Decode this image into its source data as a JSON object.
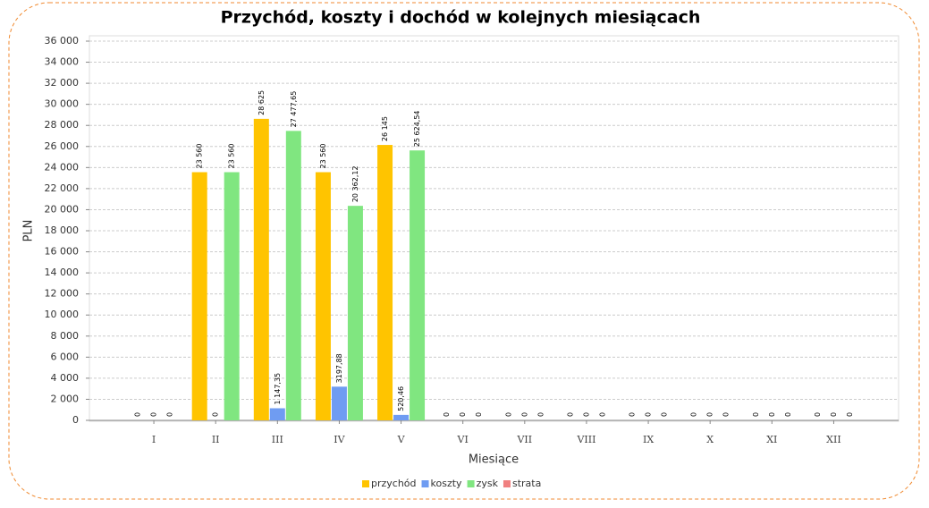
{
  "chart_data": {
    "type": "bar",
    "title": "Przychód, koszty i dochód w kolejnych miesiącach",
    "x_label": "Miesiące",
    "y_label": "PLN",
    "categories": [
      "I",
      "II",
      "III",
      "IV",
      "V",
      "VI",
      "VII",
      "VIII",
      "IX",
      "X",
      "XI",
      "XII"
    ],
    "series": [
      {
        "name": "przychód",
        "color": "#ffc400",
        "values": [
          0,
          23560,
          28625,
          23560,
          26145,
          0,
          0,
          0,
          0,
          0,
          0,
          0
        ],
        "value_labels": [
          "0",
          "23 560",
          "28 625",
          "23 560",
          "26 145",
          "0",
          "0",
          "0",
          "0",
          "0",
          "0",
          "0"
        ]
      },
      {
        "name": "koszty",
        "color": "#6f9cf2",
        "values": [
          0,
          0,
          1147.35,
          3197.88,
          520.46,
          0,
          0,
          0,
          0,
          0,
          0,
          0
        ],
        "value_labels": [
          "0",
          "0",
          "1 147,35",
          "3197,88",
          "520,46",
          "0",
          "0",
          "0",
          "0",
          "0",
          "0",
          "0"
        ]
      },
      {
        "name": "zysk",
        "color": "#80e680",
        "values": [
          0,
          23560,
          27477.65,
          20362.12,
          25624.54,
          0,
          0,
          0,
          0,
          0,
          0,
          0
        ],
        "value_labels": [
          "0",
          "23 560",
          "27 477,65",
          "20 362,12",
          "25 624,54",
          "0",
          "0",
          "0",
          "0",
          "0",
          "0",
          "0"
        ]
      },
      {
        "name": "strata",
        "color": "#f08080",
        "values": [
          null,
          null,
          null,
          null,
          null,
          null,
          null,
          null,
          null,
          null,
          null,
          null
        ]
      }
    ],
    "ylim": [
      0,
      36000
    ],
    "yticks": [
      0,
      {
        "value": 2000,
        "label": "2 000"
      },
      {
        "value": 4000,
        "label": "4 000"
      },
      {
        "value": 6000,
        "label": "6 000"
      },
      {
        "value": 8000,
        "label": "8 000"
      },
      {
        "value": 10000,
        "label": "10 000"
      },
      {
        "value": 12000,
        "label": "12 000"
      },
      {
        "value": 14000,
        "label": "14 000"
      },
      {
        "value": 16000,
        "label": "16 000"
      },
      {
        "value": 18000,
        "label": "18 000"
      },
      {
        "value": 20000,
        "label": "20 000"
      },
      {
        "value": 22000,
        "label": "22 000"
      },
      {
        "value": 24000,
        "label": "24 000"
      },
      {
        "value": 26000,
        "label": "26 000"
      },
      {
        "value": 28000,
        "label": "28 000"
      },
      {
        "value": 30000,
        "label": "30 000"
      },
      {
        "value": 32000,
        "label": "32 000"
      },
      {
        "value": 34000,
        "label": "34 000"
      },
      {
        "value": 36000,
        "label": "36 000"
      }
    ],
    "grid": true,
    "legend": "bottom"
  }
}
